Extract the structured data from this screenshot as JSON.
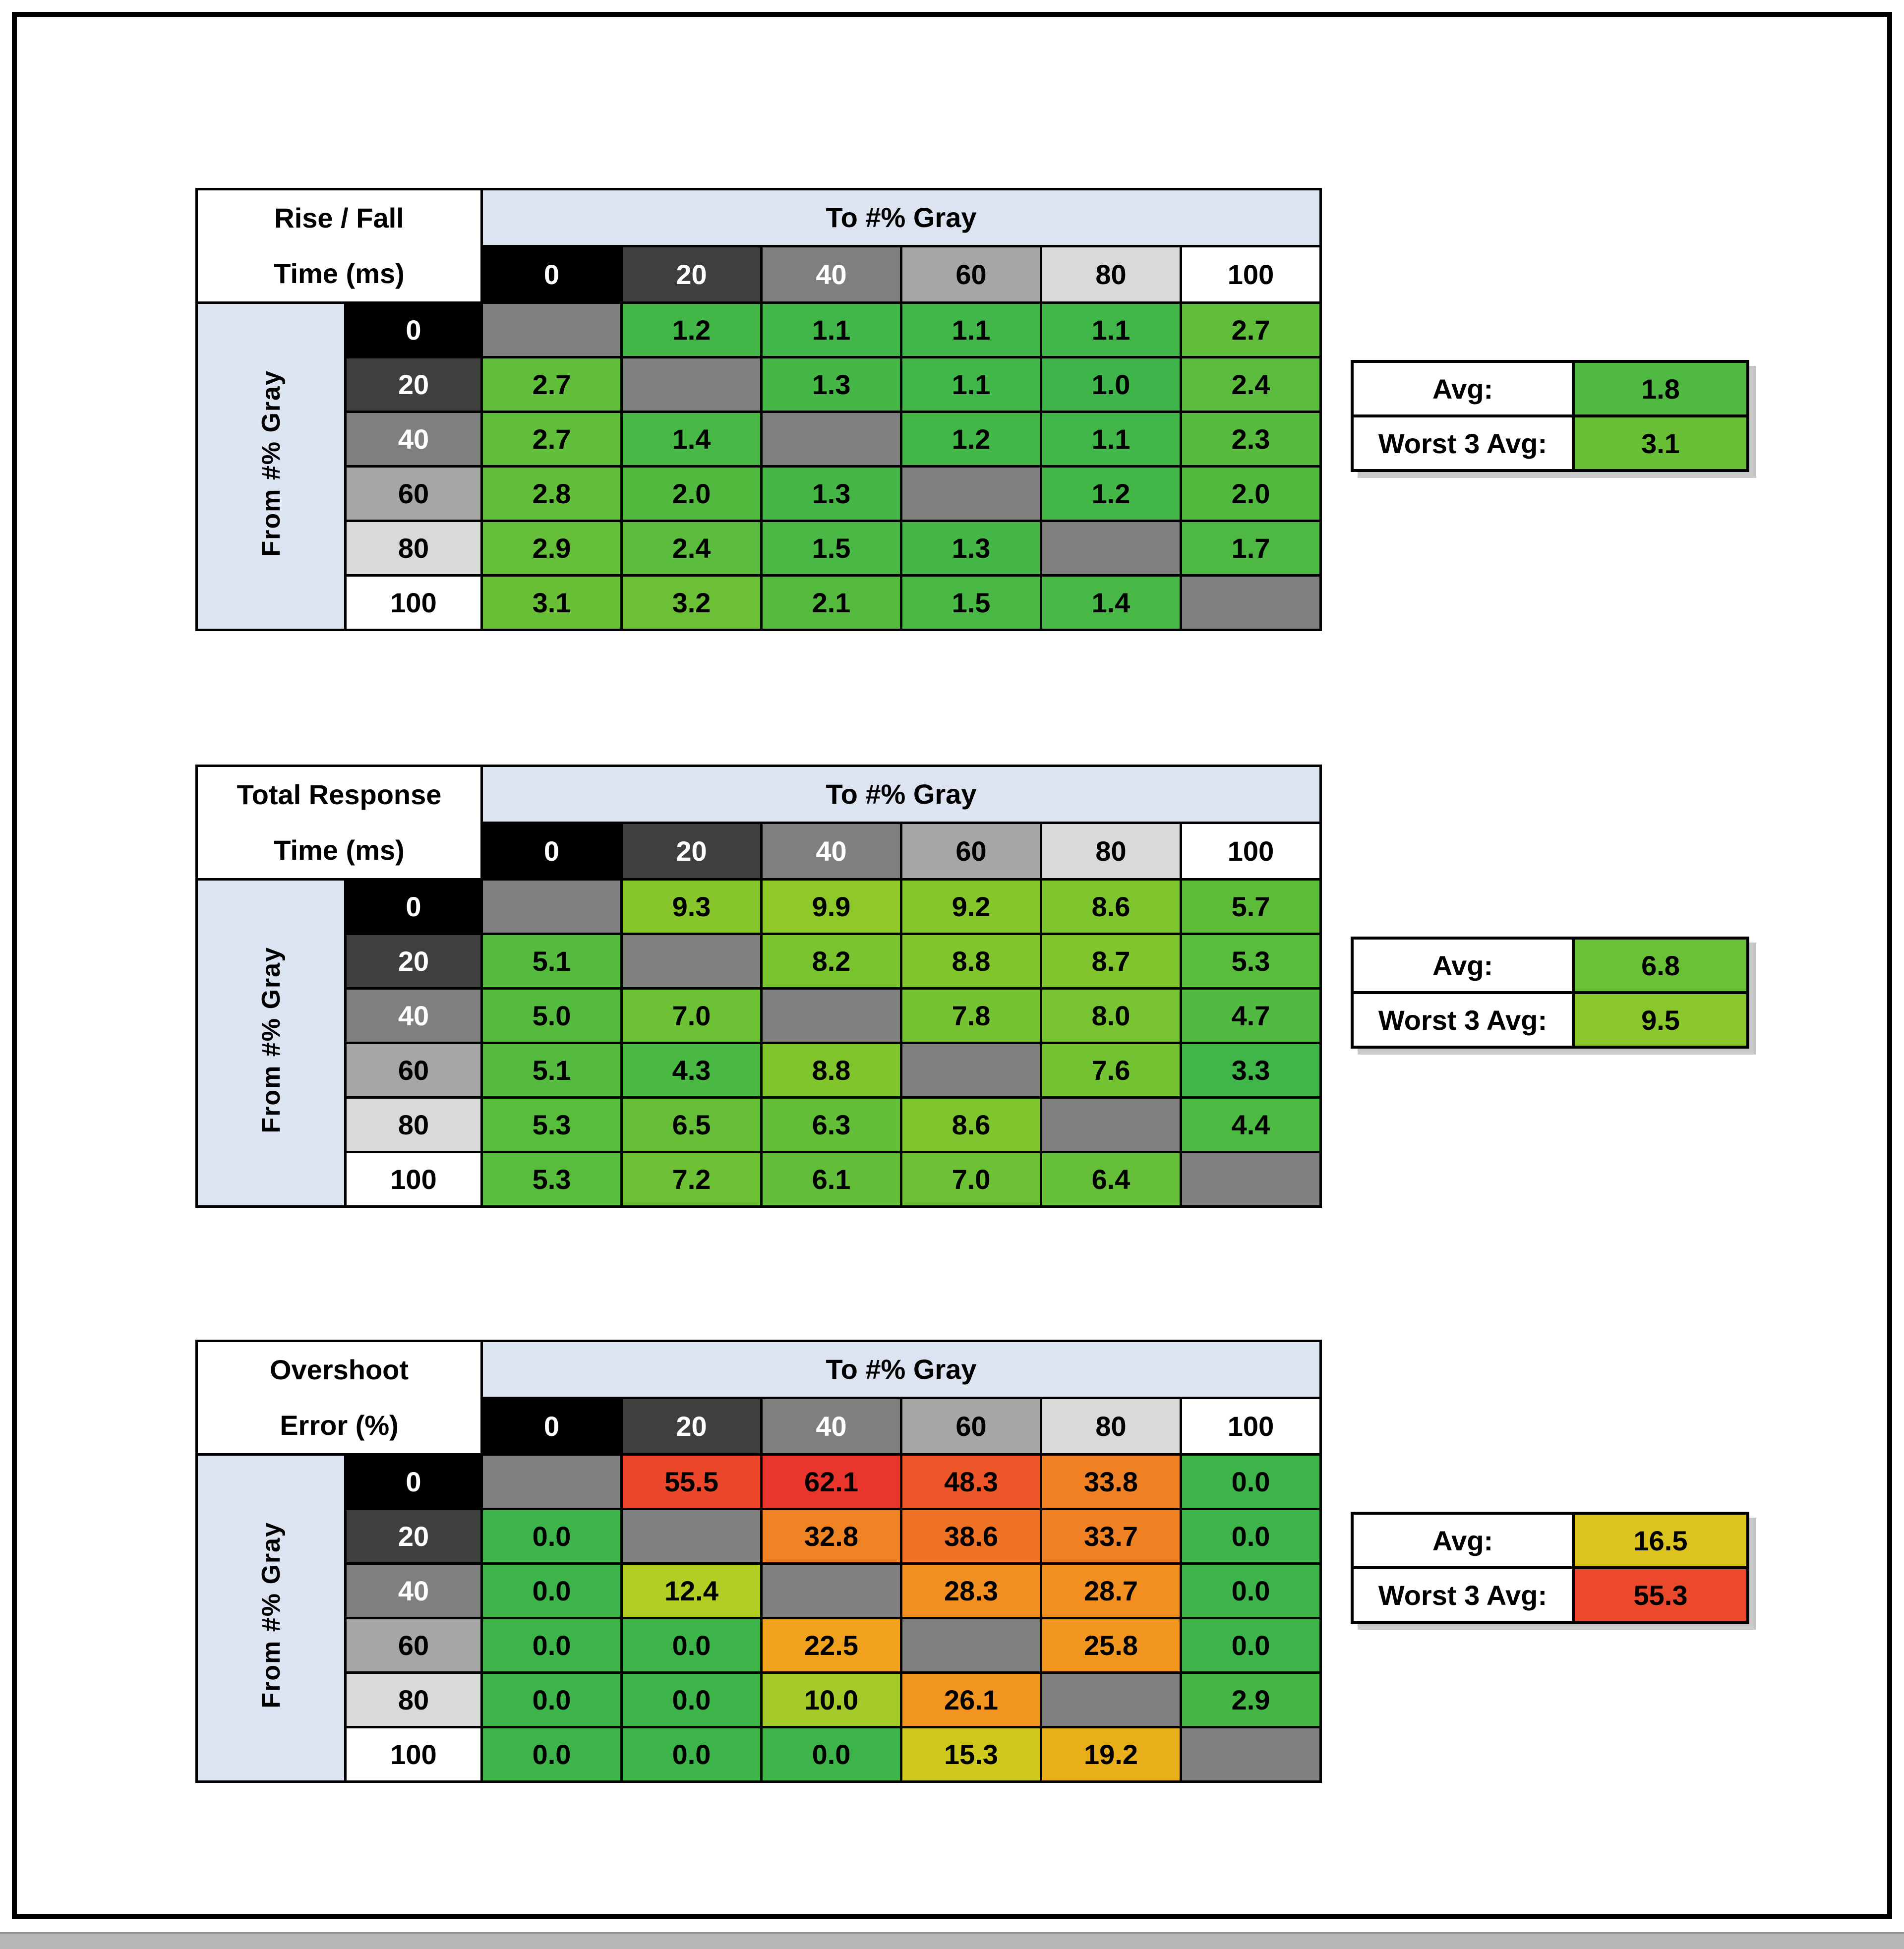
{
  "page": {
    "background": "#ffffff",
    "frame_color": "#000000",
    "scrollbar_color": "#b6b6b6"
  },
  "palette": {
    "header_fill": "#dbe4f0",
    "diagonal_fill": "#808080",
    "level_fills": [
      "#000000",
      "#3f3f3f",
      "#7f7f7f",
      "#a6a6a6",
      "#d9d9d9",
      "#ffffff"
    ],
    "level_text": [
      "#ffffff",
      "#ffffff",
      "#ffffff",
      "#000000",
      "#000000",
      "#000000"
    ]
  },
  "to_header": "To #% Gray",
  "from_header": "From #% Gray",
  "levels": [
    "0",
    "20",
    "40",
    "60",
    "80",
    "100"
  ],
  "chart_data": [
    {
      "type": "heatmap",
      "id": "rise-fall-time",
      "title": [
        "Rise / Fall",
        "Time (ms)"
      ],
      "x_label": "To #% Gray",
      "y_label": "From #% Gray",
      "x_ticks": [
        "0",
        "20",
        "40",
        "60",
        "80",
        "100"
      ],
      "y_ticks": [
        "0",
        "20",
        "40",
        "60",
        "80",
        "100"
      ],
      "cells": [
        [
          null,
          {
            "v": "1.2",
            "c": "#43b648"
          },
          {
            "v": "1.1",
            "c": "#41b649"
          },
          {
            "v": "1.1",
            "c": "#41b649"
          },
          {
            "v": "1.1",
            "c": "#41b649"
          },
          {
            "v": "2.7",
            "c": "#61be3a"
          }
        ],
        [
          {
            "v": "2.7",
            "c": "#61be3a"
          },
          null,
          {
            "v": "1.3",
            "c": "#45b747"
          },
          {
            "v": "1.1",
            "c": "#41b649"
          },
          {
            "v": "1.0",
            "c": "#3eb54a"
          },
          {
            "v": "2.4",
            "c": "#5bbc3d"
          }
        ],
        [
          {
            "v": "2.7",
            "c": "#61be3a"
          },
          {
            "v": "1.4",
            "c": "#47b846"
          },
          null,
          {
            "v": "1.2",
            "c": "#43b648"
          },
          {
            "v": "1.1",
            "c": "#41b649"
          },
          {
            "v": "2.3",
            "c": "#59bb3d"
          }
        ],
        [
          {
            "v": "2.8",
            "c": "#63be39"
          },
          {
            "v": "2.0",
            "c": "#53ba40"
          },
          {
            "v": "1.3",
            "c": "#45b747"
          },
          null,
          {
            "v": "1.2",
            "c": "#43b648"
          },
          {
            "v": "2.0",
            "c": "#53ba40"
          }
        ],
        [
          {
            "v": "2.9",
            "c": "#65bf38"
          },
          {
            "v": "2.4",
            "c": "#5bbc3d"
          },
          {
            "v": "1.5",
            "c": "#49b845"
          },
          {
            "v": "1.3",
            "c": "#45b747"
          },
          null,
          {
            "v": "1.7",
            "c": "#4db943"
          }
        ],
        [
          {
            "v": "3.1",
            "c": "#69c037"
          },
          {
            "v": "3.2",
            "c": "#6bc036"
          },
          {
            "v": "2.1",
            "c": "#55bb3f"
          },
          {
            "v": "1.5",
            "c": "#49b845"
          },
          {
            "v": "1.4",
            "c": "#47b846"
          },
          null
        ]
      ],
      "summary": {
        "avg_label": "Avg:",
        "avg": {
          "v": "1.8",
          "c": "#4fb942"
        },
        "worst_label": "Worst 3 Avg:",
        "worst": {
          "v": "3.1",
          "c": "#69c037"
        }
      }
    },
    {
      "type": "heatmap",
      "id": "total-response-time",
      "title": [
        "Total Response",
        "Time (ms)"
      ],
      "x_label": "To #% Gray",
      "y_label": "From #% Gray",
      "x_ticks": [
        "0",
        "20",
        "40",
        "60",
        "80",
        "100"
      ],
      "y_ticks": [
        "0",
        "20",
        "40",
        "60",
        "80",
        "100"
      ],
      "cells": [
        [
          null,
          {
            "v": "9.3",
            "c": "#87c72b"
          },
          {
            "v": "9.9",
            "c": "#8ec829"
          },
          {
            "v": "9.2",
            "c": "#86c62b"
          },
          {
            "v": "8.6",
            "c": "#7fc52e"
          },
          {
            "v": "5.7",
            "c": "#5dbd3b"
          }
        ],
        [
          {
            "v": "5.1",
            "c": "#55bb3f"
          },
          null,
          {
            "v": "8.2",
            "c": "#7ac430"
          },
          {
            "v": "8.8",
            "c": "#81c52d"
          },
          {
            "v": "8.7",
            "c": "#80c52e"
          },
          {
            "v": "5.3",
            "c": "#58bc3d"
          }
        ],
        [
          {
            "v": "5.0",
            "c": "#54bb3f"
          },
          {
            "v": "7.0",
            "c": "#6cc135"
          },
          null,
          {
            "v": "7.8",
            "c": "#75c332"
          },
          {
            "v": "8.0",
            "c": "#77c331"
          },
          {
            "v": "4.7",
            "c": "#50ba41"
          }
        ],
        [
          {
            "v": "5.1",
            "c": "#55bb3f"
          },
          {
            "v": "4.3",
            "c": "#4ab944"
          },
          {
            "v": "8.8",
            "c": "#81c52d"
          },
          null,
          {
            "v": "7.6",
            "c": "#73c232"
          },
          {
            "v": "3.3",
            "c": "#40b549"
          }
        ],
        [
          {
            "v": "5.3",
            "c": "#58bc3d"
          },
          {
            "v": "6.5",
            "c": "#66bf37"
          },
          {
            "v": "6.3",
            "c": "#64bf38"
          },
          {
            "v": "8.6",
            "c": "#7fc52e"
          },
          null,
          {
            "v": "4.4",
            "c": "#4cb943"
          }
        ],
        [
          {
            "v": "5.3",
            "c": "#58bc3d"
          },
          {
            "v": "7.2",
            "c": "#6ec134"
          },
          {
            "v": "6.1",
            "c": "#62be39"
          },
          {
            "v": "7.0",
            "c": "#6cc135"
          },
          {
            "v": "6.4",
            "c": "#65bf38"
          },
          null
        ]
      ],
      "summary": {
        "avg_label": "Avg:",
        "avg": {
          "v": "6.8",
          "c": "#6ac036"
        },
        "worst_label": "Worst 3 Avg:",
        "worst": {
          "v": "9.5",
          "c": "#8ac72a"
        }
      }
    },
    {
      "type": "heatmap",
      "id": "overshoot-error",
      "title": [
        "Overshoot",
        "Error (%)"
      ],
      "x_label": "To #% Gray",
      "y_label": "From #% Gray",
      "x_ticks": [
        "0",
        "20",
        "40",
        "60",
        "80",
        "100"
      ],
      "y_ticks": [
        "0",
        "20",
        "40",
        "60",
        "80",
        "100"
      ],
      "cells": [
        [
          null,
          {
            "v": "55.5",
            "c": "#ec472b"
          },
          {
            "v": "62.1",
            "c": "#ea352d"
          },
          {
            "v": "48.3",
            "c": "#ed5629"
          },
          {
            "v": "33.8",
            "c": "#f08024"
          },
          {
            "v": "0.0",
            "c": "#3db54b"
          }
        ],
        [
          {
            "v": "0.0",
            "c": "#3db54b"
          },
          null,
          {
            "v": "32.8",
            "c": "#f08323"
          },
          {
            "v": "38.6",
            "c": "#ef7226"
          },
          {
            "v": "33.7",
            "c": "#f08124"
          },
          {
            "v": "0.0",
            "c": "#3db54b"
          }
        ],
        [
          {
            "v": "0.0",
            "c": "#3db54b"
          },
          {
            "v": "12.4",
            "c": "#b3cd24"
          },
          null,
          {
            "v": "28.3",
            "c": "#f19021"
          },
          {
            "v": "28.7",
            "c": "#f18f21"
          },
          {
            "v": "0.0",
            "c": "#3db54b"
          }
        ],
        [
          {
            "v": "0.0",
            "c": "#3db54b"
          },
          {
            "v": "0.0",
            "c": "#3db54b"
          },
          {
            "v": "22.5",
            "c": "#f0a11d"
          },
          null,
          {
            "v": "25.8",
            "c": "#f1961f"
          },
          {
            "v": "0.0",
            "c": "#3db54b"
          }
        ],
        [
          {
            "v": "0.0",
            "c": "#3db54b"
          },
          {
            "v": "0.0",
            "c": "#3db54b"
          },
          {
            "v": "10.0",
            "c": "#a3ca28"
          },
          {
            "v": "26.1",
            "c": "#f19520"
          },
          null,
          {
            "v": "2.9",
            "c": "#46b747"
          }
        ],
        [
          {
            "v": "0.0",
            "c": "#3db54b"
          },
          {
            "v": "0.0",
            "c": "#3db54b"
          },
          {
            "v": "0.0",
            "c": "#3db54b"
          },
          {
            "v": "15.3",
            "c": "#cfc91d"
          },
          {
            "v": "19.2",
            "c": "#e9b01b"
          },
          null
        ]
      ],
      "summary": {
        "avg_label": "Avg:",
        "avg": {
          "v": "16.5",
          "c": "#dcc31d"
        },
        "worst_label": "Worst 3 Avg:",
        "worst": {
          "v": "55.3",
          "c": "#ec482b"
        }
      }
    }
  ]
}
